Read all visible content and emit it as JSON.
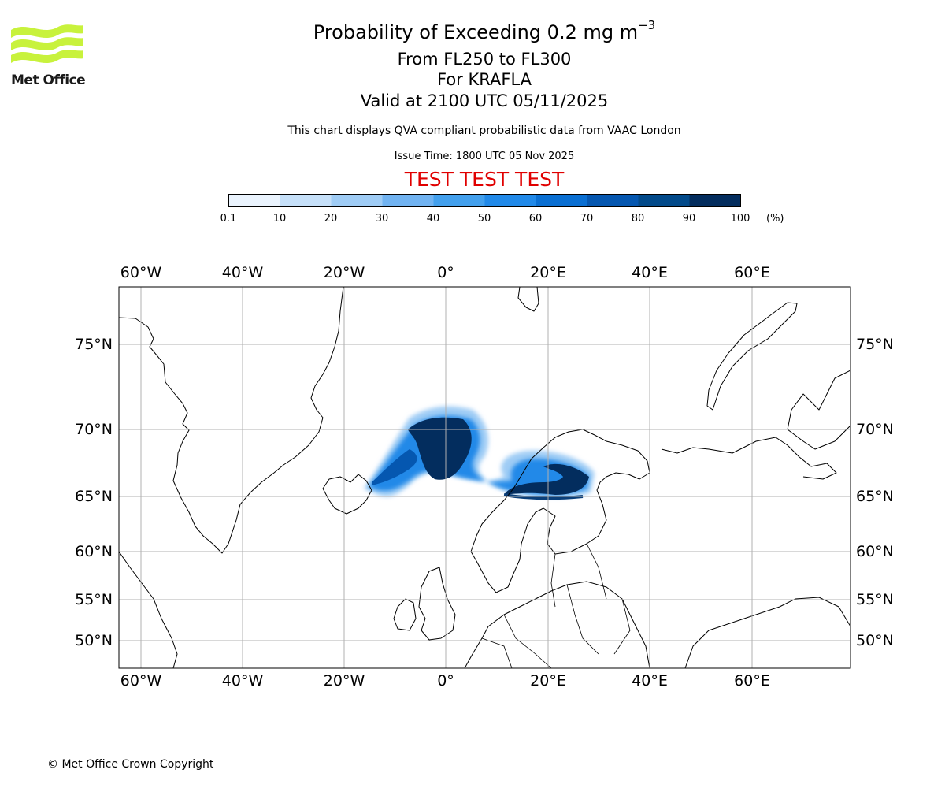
{
  "header": {
    "title_main": "Probability of Exceeding 0.2 mg m",
    "title_exp": "−3",
    "levels": "From FL250 to FL300",
    "volcano": "For KRAFLA",
    "valid": "Valid at 2100 UTC 05/11/2025",
    "note": "This chart displays QVA compliant probabilistic data from VAAC London",
    "issue": "Issue Time: 1800 UTC 05 Nov 2025",
    "test_banner": "TEST TEST TEST"
  },
  "logo": {
    "text": "Met Office",
    "icon": "met-office-waves-icon"
  },
  "colors": {
    "accent_logo": "#c8f23c",
    "test_red": "#e00000",
    "bins": [
      "#eaf3fd",
      "#c6e0f9",
      "#9fccf5",
      "#71b3f1",
      "#43a0ed",
      "#2189e8",
      "#0a6fd2",
      "#0557b0",
      "#024a8a",
      "#032d5e"
    ]
  },
  "colorbar": {
    "ticks": [
      "0.1",
      "10",
      "20",
      "30",
      "40",
      "50",
      "60",
      "70",
      "80",
      "90",
      "100"
    ],
    "unit": "(%)"
  },
  "map": {
    "top_lon_labels": [
      "60°W",
      "40°W",
      "20°W",
      "0°",
      "20°E",
      "40°E",
      "60°E"
    ],
    "bottom_lon_labels": [
      "60°W",
      "40°W",
      "20°W",
      "0°",
      "20°E",
      "40°E",
      "60°E"
    ],
    "left_lat_labels": [
      "75°N",
      "70°N",
      "65°N",
      "60°N",
      "55°N",
      "50°N"
    ],
    "right_lat_labels": [
      "75°N",
      "70°N",
      "65°N",
      "60°N",
      "55°N",
      "50°N"
    ]
  },
  "footer": {
    "copyright": "© Met Office Crown Copyright"
  }
}
